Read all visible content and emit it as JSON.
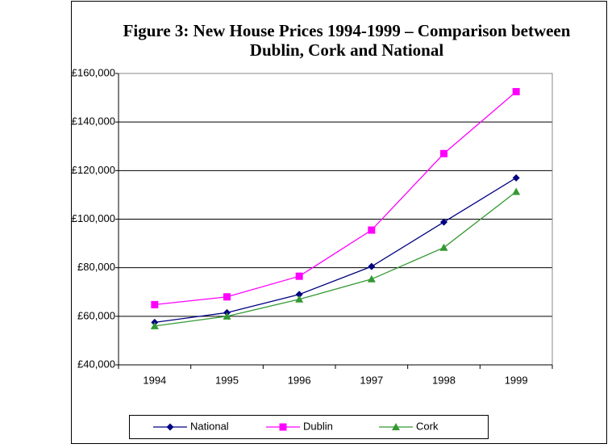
{
  "chart_data": {
    "type": "line",
    "title": [
      "Figure 3: New House Prices 1994-1999 – Comparison between",
      "Dublin, Cork and National"
    ],
    "categories": [
      "1994",
      "1995",
      "1996",
      "1997",
      "1998",
      "1999"
    ],
    "series": [
      {
        "name": "National",
        "color": "#000080",
        "marker": "diamond",
        "values": [
          57500,
          61500,
          69000,
          80500,
          98800,
          117000
        ]
      },
      {
        "name": "Dublin",
        "color": "#ff00ff",
        "marker": "square",
        "values": [
          64800,
          68000,
          76500,
          95500,
          127000,
          152500
        ]
      },
      {
        "name": "Cork",
        "color": "#339933",
        "marker": "triangle",
        "values": [
          56000,
          60000,
          67000,
          75300,
          88300,
          111300
        ]
      }
    ],
    "ylim": [
      40000,
      160000
    ],
    "yticks": [
      {
        "value": 40000,
        "label": "£40,000"
      },
      {
        "value": 60000,
        "label": "£60,000"
      },
      {
        "value": 80000,
        "label": "£80,000"
      },
      {
        "value": 100000,
        "label": "£100,000"
      },
      {
        "value": 120000,
        "label": "£120,000"
      },
      {
        "value": 140000,
        "label": "£140,000"
      },
      {
        "value": 160000,
        "label": "£160,000"
      }
    ],
    "grid": true,
    "legend": "bottom"
  }
}
